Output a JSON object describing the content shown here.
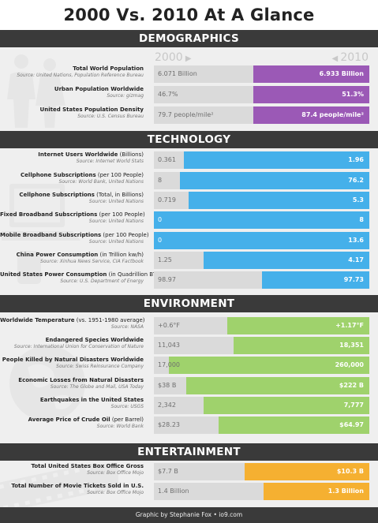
{
  "title": "2000 Vs. 2010 At A Glance",
  "year_start": "2000",
  "year_end": "2010",
  "footer": "Graphic by Stephanie Fox • io9.com",
  "colors": {
    "demographics": "#9b59b6",
    "technology": "#45b0ea",
    "environment": "#9fd26c",
    "entertainment": "#f5b031"
  },
  "sections": [
    {
      "id": "demographics",
      "name": "DEMOGRAPHICS",
      "rows": [
        {
          "label": "Total World Population",
          "paren": "",
          "source": "Source: United Nations, Population Reference Bureau",
          "v2000": "6.071 Billion",
          "v2010": "6.933 Billion",
          "fill": 0.54
        },
        {
          "label": "Urban Population Worldwide",
          "paren": "",
          "source": "Source: gizmag",
          "v2000": "46.7%",
          "v2010": "51.3%",
          "fill": 0.54
        },
        {
          "label": "United States Population Density",
          "paren": "",
          "source": "Source: U.S. Census Bureau",
          "v2000": "79.7 people/mile²",
          "v2010": "87.4 people/mile²",
          "fill": 0.54
        }
      ]
    },
    {
      "id": "technology",
      "name": "TECHNOLOGY",
      "rows": [
        {
          "label": "Internet Users Worldwide",
          "paren": " (Billions)",
          "source": "Source: Internet World Stats",
          "v2000": "0.361",
          "v2010": "1.96",
          "fill": 0.86
        },
        {
          "label": "Cellphone Subscriptions",
          "paren": " (per 100 People)",
          "source": "Source: World Bank, United Nations",
          "v2000": "8",
          "v2010": "76.2",
          "fill": 0.88
        },
        {
          "label": "Cellphone Subscriptions",
          "paren": " (Total, in Billions)",
          "source": "Source: United Nations",
          "v2000": "0.719",
          "v2010": "5.3",
          "fill": 0.84
        },
        {
          "label": "Fixed Broadband Subscriptions",
          "paren": " (per 100 People)",
          "source": "Source: United Nations",
          "v2000": "0",
          "v2010": "8",
          "fill": 1.0
        },
        {
          "label": "Mobile Broadband Subscriptions",
          "paren": " (per 100 People)",
          "source": "Source: United Nations",
          "v2000": "0",
          "v2010": "13.6",
          "fill": 1.0
        },
        {
          "label": "China Power Consumption",
          "paren": " (in Trillion kw/h)",
          "source": "Source: Xinhua News Service, CIA Factbook",
          "v2000": "1.25",
          "v2010": "4.17",
          "fill": 0.77
        },
        {
          "label": "United States Power Consumption",
          "paren": " (in Quadrillion BTU)",
          "source": "Source: U.S. Department of Energy",
          "v2000": "98.97",
          "v2010": "97.73",
          "fill": 0.5
        }
      ]
    },
    {
      "id": "environment",
      "name": "ENVIRONMENT",
      "rows": [
        {
          "label": "Worldwide Temperature",
          "paren": " (vs. 1951-1980 average)",
          "source": "Source: NASA",
          "v2000": "+0.6°F",
          "v2010": "+1.17°F",
          "fill": 0.66
        },
        {
          "label": "Endangered Species Worldwide",
          "paren": "",
          "source": "Source: International Union for Conservation of Nature",
          "v2000": "11,043",
          "v2010": "18,351",
          "fill": 0.63
        },
        {
          "label": "People Killed by Natural Disasters Worldwide",
          "paren": "",
          "source": "Source: Swiss Reinsurance Company",
          "v2000": "17,000",
          "v2010": "260,000",
          "fill": 0.93
        },
        {
          "label": "Economic Losses from Natural Disasters",
          "paren": "",
          "source": "Source: The Globe and Mail, USA Today",
          "v2000": "$38 B",
          "v2010": "$222 B",
          "fill": 0.85
        },
        {
          "label": "Earthquakes in the United States",
          "paren": "",
          "source": "Source: USGS",
          "v2000": "2,342",
          "v2010": "7,777",
          "fill": 0.77
        },
        {
          "label": "Average Price of Crude Oil",
          "paren": " (per Barrel)",
          "source": "Source: World Bank",
          "v2000": "$28.23",
          "v2010": "$64.97",
          "fill": 0.7
        }
      ]
    },
    {
      "id": "entertainment",
      "name": "ENTERTAINMENT",
      "rows": [
        {
          "label": "Total United States Box Office Gross",
          "paren": "",
          "source": "Source: Box Office Mojo",
          "v2000": "$7.7 B",
          "v2010": "$10.3 B",
          "fill": 0.58
        },
        {
          "label": "Total Number of Movie Tickets Sold in U.S.",
          "paren": "",
          "source": "Source: Box Office Mojo",
          "v2000": "1.4 Billion",
          "v2010": "1.3 Billion",
          "fill": 0.49
        }
      ]
    }
  ]
}
